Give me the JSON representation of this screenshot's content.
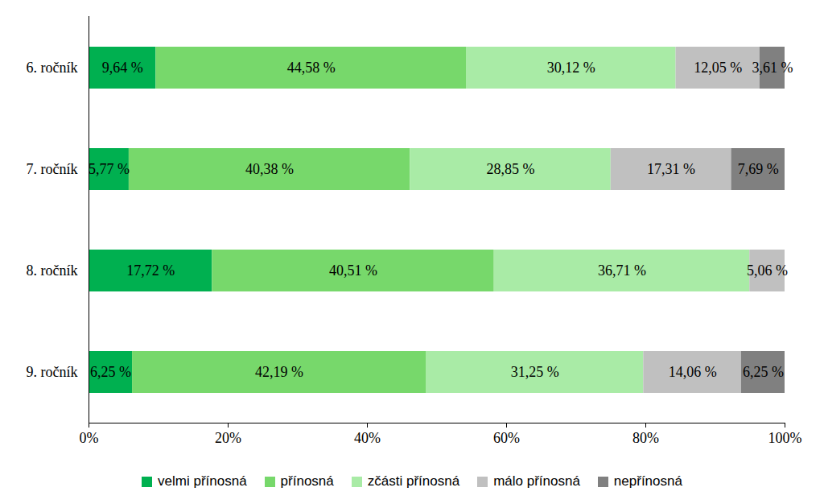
{
  "chart_data": {
    "type": "bar",
    "orientation": "horizontal",
    "stacked": true,
    "data_labels": true,
    "grid": false,
    "legend": "bottom",
    "categories": [
      "6. ročník",
      "7. ročník",
      "8. ročník",
      "9. ročník"
    ],
    "series": [
      {
        "name": "velmi přínosná",
        "color": "#00b050",
        "values": [
          9.64,
          5.77,
          17.72,
          6.25
        ],
        "value_labels": [
          "9,64 %",
          "5,77 %",
          "17,72 %",
          "6,25 %"
        ]
      },
      {
        "name": "přínosná",
        "color": "#77d86b",
        "values": [
          44.58,
          40.38,
          40.51,
          42.19
        ],
        "value_labels": [
          "44,58 %",
          "40,38 %",
          "40,51 %",
          "42,19 %"
        ]
      },
      {
        "name": "zčásti přínosná",
        "color": "#a9eba6",
        "values": [
          30.12,
          28.85,
          36.71,
          31.25
        ],
        "value_labels": [
          "30,12 %",
          "28,85 %",
          "36,71 %",
          "31,25 %"
        ]
      },
      {
        "name": "málo přínosná",
        "color": "#c0c0c0",
        "values": [
          12.05,
          17.31,
          5.06,
          14.06
        ],
        "value_labels": [
          "12,05 %",
          "17,31 %",
          "5,06 %",
          "14,06 %"
        ]
      },
      {
        "name": "nepřínosná",
        "color": "#808080",
        "values": [
          3.61,
          7.69,
          null,
          6.25
        ],
        "value_labels": [
          "3,61 %",
          "7,69 %",
          null,
          "6,25 %"
        ]
      }
    ],
    "xlim": [
      0,
      100
    ],
    "xticks": [
      {
        "value": 0,
        "label": "0%"
      },
      {
        "value": 20,
        "label": "20%"
      },
      {
        "value": 40,
        "label": "40%"
      },
      {
        "value": 60,
        "label": "60%"
      },
      {
        "value": 80,
        "label": "80%"
      },
      {
        "value": 100,
        "label": "100%"
      }
    ]
  }
}
